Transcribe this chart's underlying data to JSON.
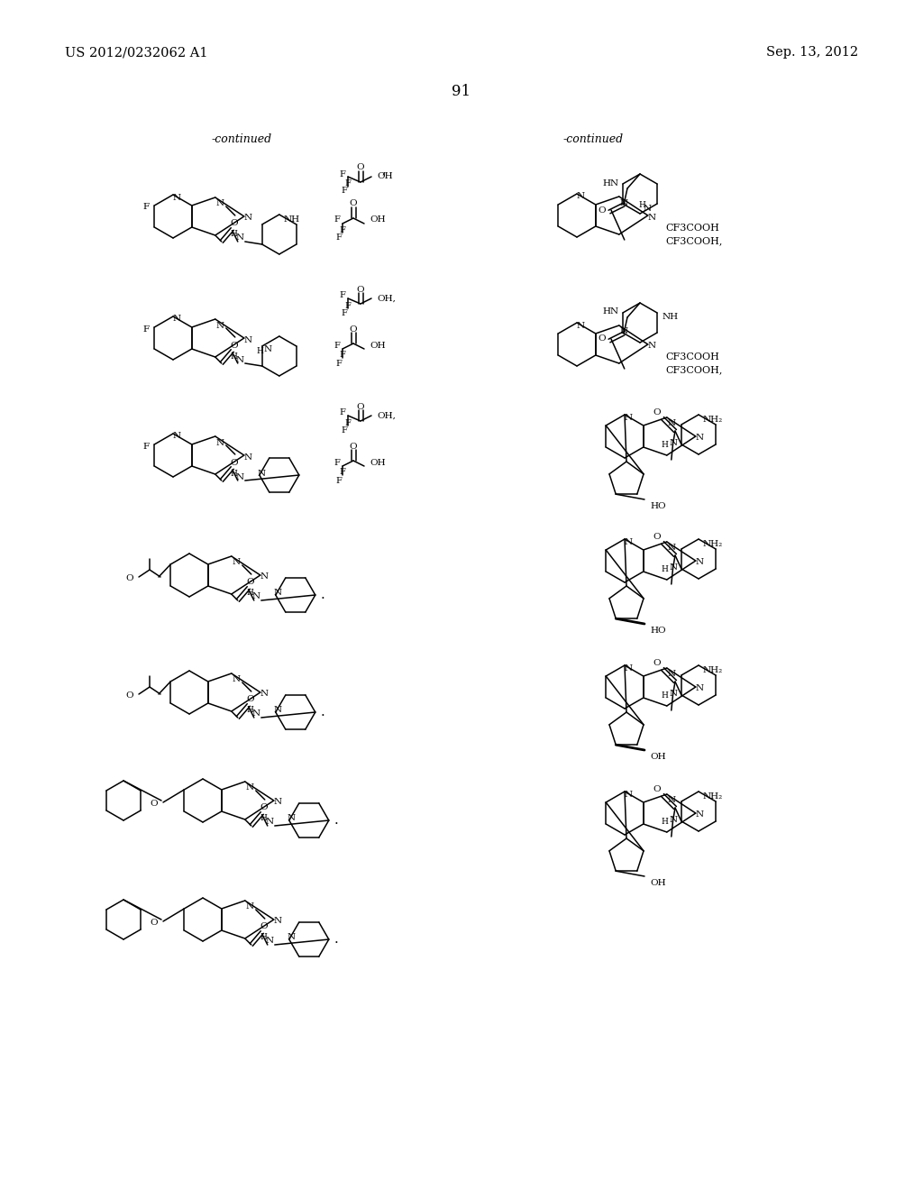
{
  "page_number": "91",
  "patent_number": "US 2012/0232062 A1",
  "patent_date": "Sep. 13, 2012",
  "background_color": "#ffffff",
  "text_color": "#000000",
  "continued_left": "-continued",
  "continued_right": "-continued"
}
